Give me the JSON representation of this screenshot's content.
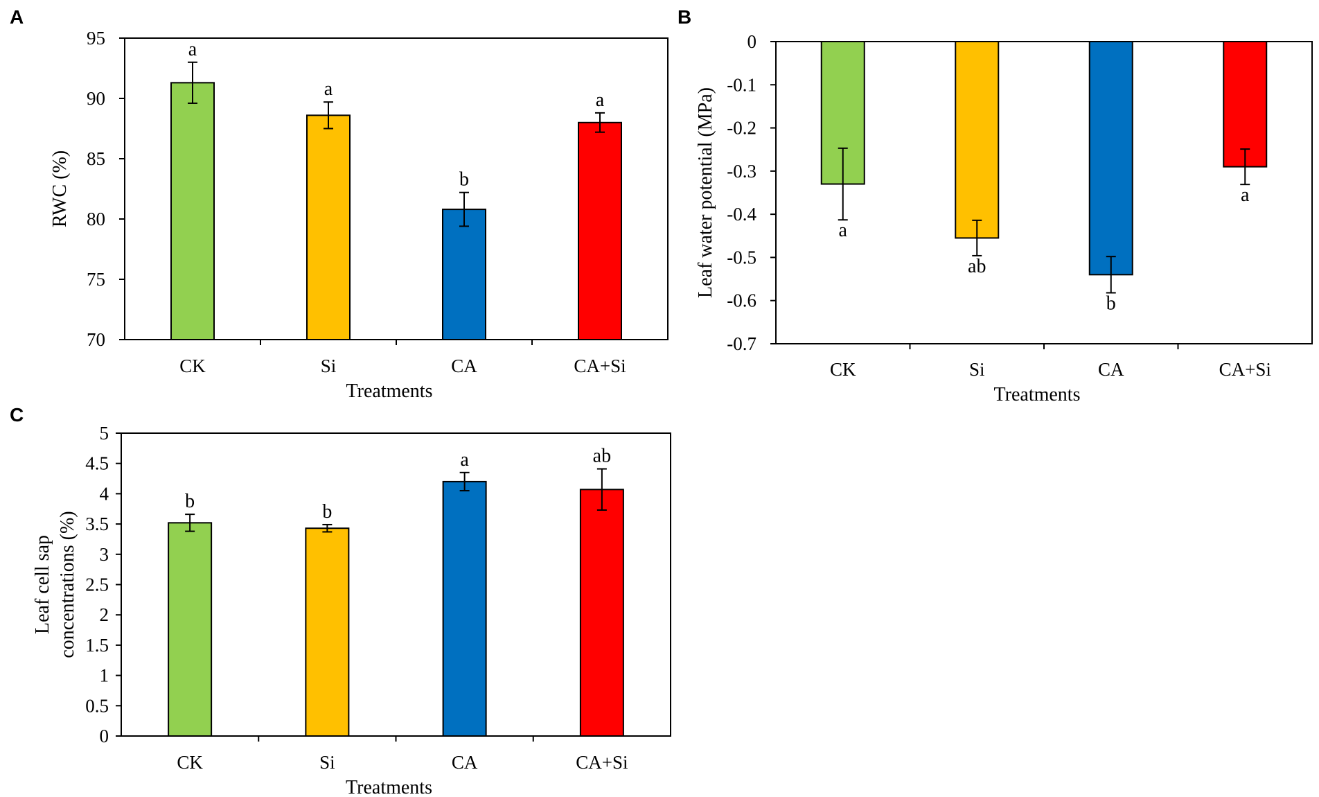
{
  "chart_data": [
    {
      "panel": "A",
      "type": "bar",
      "categories": [
        "CK",
        "Si",
        "CA",
        "CA+Si"
      ],
      "values": [
        91.3,
        88.6,
        80.8,
        88.0
      ],
      "errors": [
        1.7,
        1.1,
        1.4,
        0.8
      ],
      "significance": [
        "a",
        "a",
        "b",
        "a"
      ],
      "colors": [
        "#92d050",
        "#ffc000",
        "#0070c0",
        "#ff0000"
      ],
      "xlabel": "Treatments",
      "ylabel": "RWC (%)",
      "ylim": [
        70,
        95
      ],
      "yticks": [
        70,
        75,
        80,
        85,
        90,
        95
      ],
      "ytick_labels": [
        "70",
        "75",
        "80",
        "85",
        "90",
        "95"
      ],
      "grid": false
    },
    {
      "panel": "B",
      "type": "bar",
      "categories": [
        "CK",
        "Si",
        "CA",
        "CA+Si"
      ],
      "values": [
        -0.33,
        -0.455,
        -0.54,
        -0.29
      ],
      "errors": [
        0.083,
        0.041,
        0.042,
        0.041
      ],
      "significance": [
        "a",
        "ab",
        "b",
        "a"
      ],
      "colors": [
        "#92d050",
        "#ffc000",
        "#0070c0",
        "#ff0000"
      ],
      "xlabel": "Treatments",
      "ylabel": "Leaf water potential (MPa)",
      "ylim": [
        -0.7,
        0
      ],
      "yticks": [
        0,
        -0.1,
        -0.2,
        -0.3,
        -0.4,
        -0.5,
        -0.6,
        -0.7
      ],
      "ytick_labels": [
        "0",
        "-0.1",
        "-0.2",
        "-0.3",
        "-0.4",
        "-0.5",
        "-0.6",
        "-0.7"
      ],
      "grid": false
    },
    {
      "panel": "C",
      "type": "bar",
      "categories": [
        "CK",
        "Si",
        "CA",
        "CA+Si"
      ],
      "values": [
        3.52,
        3.43,
        4.2,
        4.07
      ],
      "errors": [
        0.14,
        0.06,
        0.15,
        0.34
      ],
      "significance": [
        "b",
        "b",
        "a",
        "ab"
      ],
      "colors": [
        "#92d050",
        "#ffc000",
        "#0070c0",
        "#ff0000"
      ],
      "xlabel": "Treatments",
      "ylabel": [
        "Leaf cell sap",
        "concentrations (%)"
      ],
      "ylim": [
        0,
        5
      ],
      "yticks": [
        0,
        0.5,
        1,
        1.5,
        2,
        2.5,
        3,
        3.5,
        4,
        4.5,
        5
      ],
      "ytick_labels": [
        "0",
        "0.5",
        "1",
        "1.5",
        "2",
        "2.5",
        "3",
        "3.5",
        "4",
        "4.5",
        "5"
      ],
      "grid": false
    }
  ]
}
